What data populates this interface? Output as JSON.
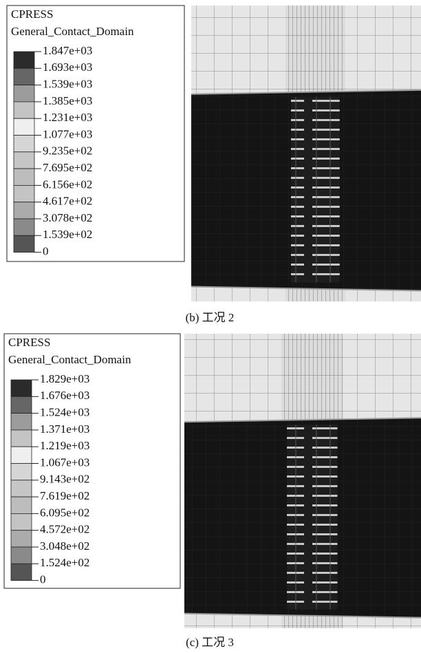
{
  "panels": [
    {
      "legend": {
        "title": "CPRESS",
        "subtitle": "General_Contact_Domain",
        "labels": [
          "1.847e+03",
          "1.693e+03",
          "1.539e+03",
          "1.385e+03",
          "1.231e+03",
          "1.077e+03",
          "9.235e+02",
          "7.695e+02",
          "6.156e+02",
          "4.617e+02",
          "3.078e+02",
          "1.539e+02",
          "0"
        ]
      },
      "caption": "(b) 工况 2"
    },
    {
      "legend": {
        "title": "CPRESS",
        "subtitle": "General_Contact_Domain",
        "labels": [
          "1.829e+03",
          "1.676e+03",
          "1.524e+03",
          "1.371e+03",
          "1.219e+03",
          "1.067e+03",
          "9.143e+02",
          "7.619e+02",
          "6.095e+02",
          "4.572e+02",
          "3.048e+02",
          "1.524e+02",
          "0"
        ]
      },
      "caption": "(c) 工况 3"
    }
  ]
}
